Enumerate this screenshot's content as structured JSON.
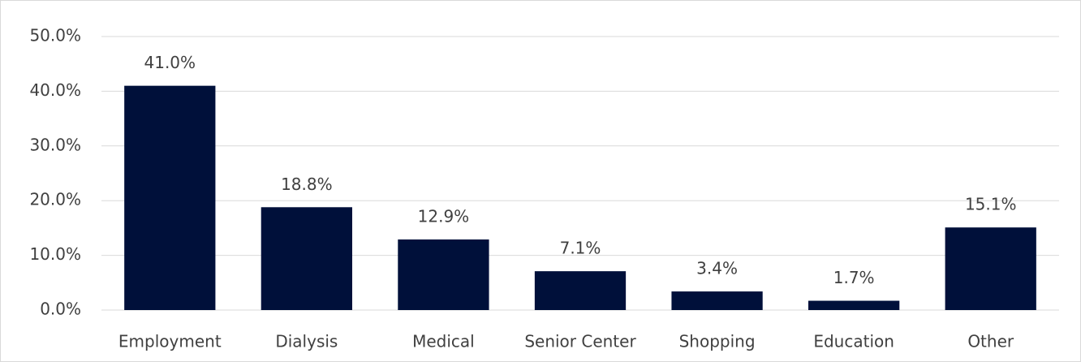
{
  "chart_data": {
    "type": "bar",
    "categories": [
      "Employment",
      "Dialysis",
      "Medical",
      "Senior Center",
      "Shopping",
      "Education",
      "Other"
    ],
    "values": [
      41.0,
      18.8,
      12.9,
      7.1,
      3.4,
      1.7,
      15.1
    ],
    "value_labels": [
      "41.0%",
      "18.8%",
      "12.9%",
      "7.1%",
      "3.4%",
      "1.7%",
      "15.1%"
    ],
    "color": "#00103a",
    "ylim": [
      0,
      50
    ],
    "yticks": [
      {
        "value": 0,
        "label": "0.0%"
      },
      {
        "value": 10,
        "label": "10.0%"
      },
      {
        "value": 20,
        "label": "20.0%"
      },
      {
        "value": 30,
        "label": "30.0%"
      },
      {
        "value": 40,
        "label": "40.0%"
      },
      {
        "value": 50,
        "label": "50.0%"
      }
    ],
    "grid": true
  }
}
